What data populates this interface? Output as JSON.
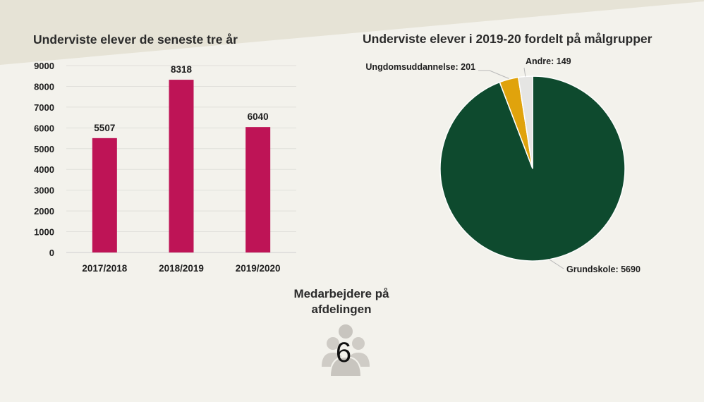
{
  "colors": {
    "background": "#f3f2ec",
    "bar": "#be1456",
    "pie_grundskole": "#0e4a2e",
    "pie_ungdomsuddannelse": "#e0a30c",
    "pie_andre": "#e5e5e3",
    "staff_icon": "#cfccc6"
  },
  "chart_data": [
    {
      "type": "bar",
      "title": "Underviste elever de seneste tre år",
      "categories": [
        "2017/2018",
        "2018/2019",
        "2019/2020"
      ],
      "values": [
        5507,
        8318,
        6040
      ],
      "data_labels": [
        "5507",
        "8318",
        "6040"
      ],
      "ylim": [
        0,
        9000
      ],
      "yticks": [
        "0",
        "1000",
        "2000",
        "3000",
        "4000",
        "5000",
        "6000",
        "7000",
        "8000",
        "9000"
      ],
      "grid": true
    },
    {
      "type": "pie",
      "title": "Underviste elever i 2019-20 fordelt på målgrupper",
      "slices": [
        {
          "label": "Grundskole",
          "value": 5690,
          "display": "Grundskole: 5690"
        },
        {
          "label": "Ungdomsuddannelse",
          "value": 201,
          "display": "Ungdomsuddannelse: 201"
        },
        {
          "label": "Andre",
          "value": 149,
          "display": "Andre: 149"
        }
      ]
    }
  ],
  "staff": {
    "title": "Medarbejdere på afdelingen",
    "count": "6",
    "icon": "people-group-icon"
  }
}
